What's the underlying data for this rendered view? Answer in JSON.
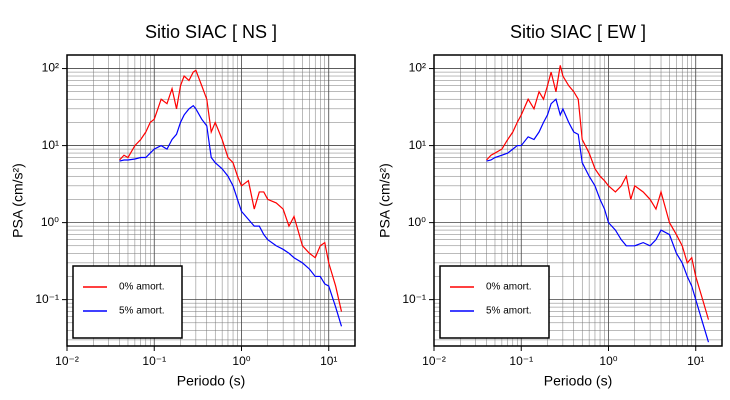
{
  "chart_data": [
    {
      "type": "line",
      "title": "Sitio SIAC [ NS ]",
      "x_label": "Periodo (s)",
      "y_label": "PSA (cm/s²)",
      "x_scale": "log",
      "y_scale": "log",
      "grid": true,
      "legend": "lower left",
      "xlim": [
        0.01,
        20
      ],
      "ylim": [
        0.025,
        150
      ],
      "xticks": [
        {
          "value": 0.01,
          "label": "10⁻²"
        },
        {
          "value": 0.1,
          "label": "10⁻¹"
        },
        {
          "value": 1,
          "label": "10⁰"
        },
        {
          "value": 10,
          "label": "10¹"
        }
      ],
      "yticks": [
        {
          "value": 0.1,
          "label": "10⁻¹"
        },
        {
          "value": 1,
          "label": "10⁰"
        },
        {
          "value": 10,
          "label": "10¹"
        },
        {
          "value": 100,
          "label": "10²"
        }
      ],
      "x": [
        0.04,
        0.045,
        0.05,
        0.06,
        0.07,
        0.08,
        0.09,
        0.1,
        0.12,
        0.14,
        0.16,
        0.18,
        0.2,
        0.22,
        0.25,
        0.28,
        0.3,
        0.35,
        0.4,
        0.45,
        0.5,
        0.6,
        0.7,
        0.8,
        0.9,
        1.0,
        1.2,
        1.4,
        1.6,
        1.8,
        2.0,
        2.5,
        3,
        3.5,
        4,
        5,
        6,
        7,
        8,
        9,
        10,
        12,
        14
      ],
      "series": [
        {
          "name": "0% amort.",
          "color": "#ff0000",
          "values": [
            6.5,
            7.5,
            7,
            10,
            12,
            15,
            20,
            22,
            40,
            35,
            55,
            30,
            60,
            80,
            70,
            90,
            95,
            60,
            40,
            15,
            20,
            12,
            7,
            6,
            4,
            3,
            3.5,
            1.5,
            2.5,
            2.5,
            2,
            1.8,
            1.5,
            0.9,
            1.2,
            0.5,
            0.4,
            0.35,
            0.5,
            0.55,
            0.3,
            0.15,
            0.07
          ]
        },
        {
          "name": "5% amort.",
          "color": "#0000ff",
          "values": [
            6.3,
            6.5,
            6.5,
            6.7,
            7,
            7,
            8,
            9,
            10,
            9,
            12,
            14,
            20,
            25,
            30,
            33,
            30,
            22,
            18,
            7,
            6,
            5,
            4,
            3,
            2,
            1.4,
            1.1,
            0.9,
            0.9,
            0.7,
            0.6,
            0.5,
            0.45,
            0.4,
            0.35,
            0.3,
            0.25,
            0.2,
            0.2,
            0.16,
            0.15,
            0.08,
            0.045
          ]
        }
      ]
    },
    {
      "type": "line",
      "title": "Sitio SIAC [ EW ]",
      "x_label": "Periodo (s)",
      "y_label": "PSA (cm/s²)",
      "x_scale": "log",
      "y_scale": "log",
      "grid": true,
      "legend": "lower left",
      "xlim": [
        0.01,
        20
      ],
      "ylim": [
        0.025,
        150
      ],
      "xticks": [
        {
          "value": 0.01,
          "label": "10⁻²"
        },
        {
          "value": 0.1,
          "label": "10⁻¹"
        },
        {
          "value": 1,
          "label": "10⁰"
        },
        {
          "value": 10,
          "label": "10¹"
        }
      ],
      "yticks": [
        {
          "value": 0.1,
          "label": "10⁻¹"
        },
        {
          "value": 1,
          "label": "10⁰"
        },
        {
          "value": 10,
          "label": "10¹"
        },
        {
          "value": 100,
          "label": "10²"
        }
      ],
      "x": [
        0.04,
        0.045,
        0.05,
        0.06,
        0.07,
        0.08,
        0.09,
        0.1,
        0.12,
        0.14,
        0.16,
        0.18,
        0.2,
        0.22,
        0.25,
        0.28,
        0.3,
        0.35,
        0.4,
        0.45,
        0.5,
        0.6,
        0.7,
        0.8,
        0.9,
        1.0,
        1.2,
        1.4,
        1.6,
        1.8,
        2.0,
        2.5,
        3,
        3.5,
        4,
        5,
        6,
        7,
        8,
        9,
        10,
        12,
        14
      ],
      "series": [
        {
          "name": "0% amort.",
          "color": "#ff0000",
          "values": [
            6.5,
            7.5,
            8,
            9,
            12,
            15,
            20,
            25,
            40,
            30,
            50,
            40,
            60,
            90,
            50,
            110,
            80,
            60,
            50,
            40,
            12,
            8,
            5,
            4,
            3.5,
            3,
            2.5,
            3,
            4,
            2,
            3,
            2.5,
            2,
            1.5,
            2.5,
            1,
            0.7,
            0.5,
            0.3,
            0.35,
            0.2,
            0.1,
            0.055
          ]
        },
        {
          "name": "5% amort.",
          "color": "#0000ff",
          "values": [
            6.3,
            6.5,
            7,
            7.5,
            8,
            9,
            10,
            10,
            13,
            12,
            15,
            20,
            25,
            35,
            40,
            25,
            30,
            20,
            15,
            14,
            6,
            4,
            3,
            2,
            1.5,
            1,
            0.8,
            0.6,
            0.5,
            0.5,
            0.5,
            0.55,
            0.5,
            0.6,
            0.8,
            0.7,
            0.4,
            0.3,
            0.2,
            0.15,
            0.1,
            0.05,
            0.028
          ]
        }
      ]
    }
  ]
}
